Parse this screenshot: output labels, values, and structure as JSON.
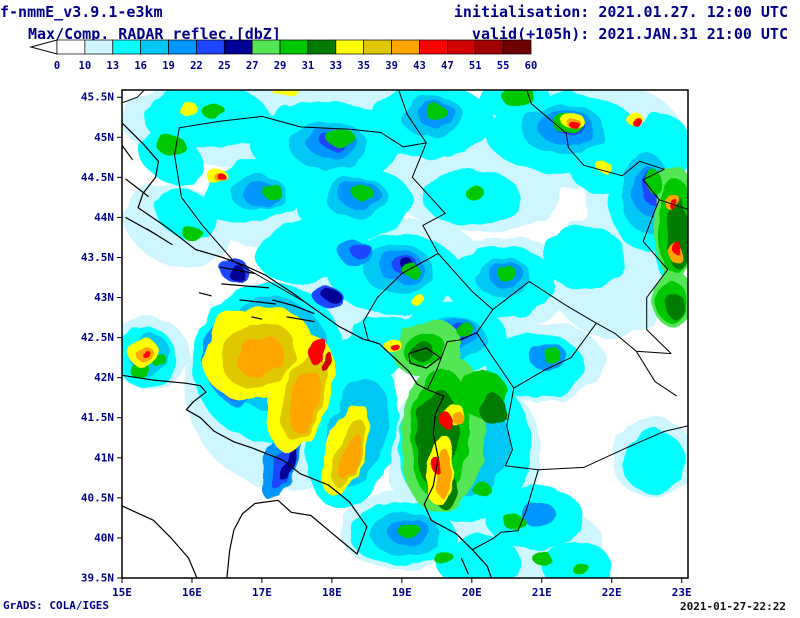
{
  "header": {
    "model": "f-nmmE_v3.9.1-e3km",
    "product": "Max/Comp. RADAR reflec.[dbZ]",
    "init": "initialisation: 2021.01.27. 12:00 UTC",
    "valid": "valid(+105h): 2021.JAN.31 21:00 UTC"
  },
  "colorbar": {
    "unit": "dbZ",
    "levels": [
      "0",
      "10",
      "13",
      "16",
      "19",
      "22",
      "25",
      "27",
      "29",
      "31",
      "33",
      "35",
      "39",
      "43",
      "47",
      "51",
      "55",
      "60"
    ],
    "colors": [
      "#ffffff",
      "#cdf6ff",
      "#00ffff",
      "#00c8f5",
      "#0096ff",
      "#1e46ff",
      "#000096",
      "#55e655",
      "#00c800",
      "#007d00",
      "#ffff00",
      "#e0c800",
      "#ffa500",
      "#ff0000",
      "#d20000",
      "#a00000",
      "#6e0000"
    ]
  },
  "axes": {
    "x_labels": [
      "15E",
      "16E",
      "17E",
      "18E",
      "19E",
      "20E",
      "21E",
      "22E",
      "23E"
    ],
    "y_labels": [
      "45.5N",
      "45N",
      "44.5N",
      "44N",
      "43.5N",
      "43N",
      "42.5N",
      "42N",
      "41.5N",
      "41N",
      "40.5N",
      "40N",
      "39.5N"
    ],
    "lon_min": 15,
    "lon_max": 23.09,
    "lat_min": 39.5,
    "lat_max": 45.59
  },
  "footer": {
    "left": "GrADS: COLA/IGES",
    "right": "2021-01-27-22:22"
  },
  "chart_data": {
    "type": "map-filled-contour",
    "quantity": "Max/Comp. RADAR reflectivity",
    "unit": "dbZ",
    "levels": [
      0,
      10,
      13,
      16,
      19,
      22,
      25,
      27,
      29,
      31,
      33,
      35,
      39,
      43,
      47,
      51,
      55,
      60
    ],
    "region": {
      "lon": [
        15,
        23.09
      ],
      "lat": [
        39.5,
        45.59
      ]
    },
    "cells": [
      [
        16.5,
        45.2,
        1.5,
        0.55,
        0,
        1
      ],
      [
        18.7,
        45.0,
        1.7,
        0.75,
        0,
        1
      ],
      [
        21.5,
        45.05,
        1.5,
        0.7,
        0,
        1
      ],
      [
        17.4,
        44.25,
        1.3,
        0.6,
        -10,
        1
      ],
      [
        20.1,
        44.35,
        1.2,
        0.55,
        0,
        1
      ],
      [
        22.4,
        44.3,
        0.8,
        0.9,
        0,
        1
      ],
      [
        15.8,
        43.9,
        0.8,
        0.5,
        20,
        1
      ],
      [
        18.9,
        43.35,
        1.3,
        0.6,
        -5,
        1
      ],
      [
        20.5,
        43.2,
        1.0,
        0.55,
        0,
        1
      ],
      [
        22.0,
        43.3,
        0.9,
        0.8,
        0,
        1
      ],
      [
        19.8,
        42.5,
        1.1,
        0.6,
        0,
        1
      ],
      [
        21.0,
        42.2,
        0.9,
        0.5,
        0,
        1
      ],
      [
        17.4,
        41.9,
        1.5,
        1.3,
        0,
        1
      ],
      [
        19.9,
        41.0,
        1.1,
        1.1,
        0,
        1
      ],
      [
        19.0,
        40.1,
        0.9,
        0.5,
        0,
        1
      ],
      [
        20.9,
        39.9,
        1.0,
        0.5,
        0,
        1
      ],
      [
        15.4,
        42.3,
        0.55,
        0.45,
        0,
        1
      ],
      [
        22.6,
        41.0,
        0.6,
        0.5,
        0,
        1
      ],
      [
        16.2,
        45.25,
        0.9,
        0.4,
        0,
        2
      ],
      [
        17.9,
        44.95,
        1.1,
        0.5,
        0,
        2
      ],
      [
        19.4,
        45.2,
        0.9,
        0.45,
        0,
        2
      ],
      [
        21.3,
        45.05,
        1.1,
        0.5,
        0,
        2
      ],
      [
        22.7,
        44.85,
        0.45,
        0.45,
        0,
        2
      ],
      [
        16.9,
        44.35,
        0.75,
        0.4,
        -15,
        2
      ],
      [
        18.3,
        44.2,
        0.85,
        0.45,
        0,
        2
      ],
      [
        20.0,
        44.25,
        0.7,
        0.35,
        0,
        2
      ],
      [
        22.45,
        44.25,
        0.5,
        0.65,
        0,
        2
      ],
      [
        15.7,
        44.75,
        0.5,
        0.3,
        30,
        2
      ],
      [
        15.9,
        44.05,
        0.45,
        0.3,
        30,
        2
      ],
      [
        17.7,
        43.6,
        0.8,
        0.4,
        -10,
        2
      ],
      [
        18.9,
        43.3,
        0.95,
        0.5,
        0,
        2
      ],
      [
        20.4,
        43.2,
        0.8,
        0.45,
        0,
        2
      ],
      [
        21.6,
        43.5,
        0.6,
        0.4,
        0,
        2
      ],
      [
        22.85,
        43.9,
        0.3,
        0.7,
        0,
        2
      ],
      [
        19.7,
        42.5,
        0.8,
        0.45,
        0,
        2
      ],
      [
        20.9,
        42.15,
        0.7,
        0.4,
        0,
        2
      ],
      [
        18.7,
        42.4,
        0.6,
        0.35,
        -20,
        2
      ],
      [
        17.1,
        42.2,
        1.1,
        1.0,
        0,
        2
      ],
      [
        18.3,
        41.3,
        0.6,
        0.95,
        15,
        2
      ],
      [
        19.9,
        41.15,
        0.95,
        0.95,
        0,
        2
      ],
      [
        19.0,
        40.05,
        0.75,
        0.4,
        0,
        2
      ],
      [
        20.1,
        39.7,
        0.6,
        0.35,
        0,
        2
      ],
      [
        20.9,
        40.25,
        0.7,
        0.4,
        0,
        2
      ],
      [
        21.5,
        39.65,
        0.5,
        0.3,
        0,
        2
      ],
      [
        15.35,
        42.25,
        0.42,
        0.38,
        0,
        2
      ],
      [
        22.6,
        40.95,
        0.45,
        0.4,
        0,
        2
      ],
      [
        21.9,
        44.6,
        0.5,
        0.3,
        0,
        2
      ],
      [
        20.6,
        45.5,
        0.5,
        0.25,
        0,
        2
      ],
      [
        17.95,
        44.9,
        0.55,
        0.3,
        0,
        3
      ],
      [
        21.3,
        45.1,
        0.6,
        0.3,
        0,
        3
      ],
      [
        19.45,
        45.25,
        0.45,
        0.25,
        0,
        3
      ],
      [
        18.35,
        44.25,
        0.45,
        0.25,
        0,
        3
      ],
      [
        16.95,
        44.3,
        0.4,
        0.22,
        0,
        3
      ],
      [
        18.95,
        43.35,
        0.5,
        0.3,
        0,
        3
      ],
      [
        20.45,
        43.25,
        0.4,
        0.25,
        0,
        3
      ],
      [
        19.75,
        42.5,
        0.45,
        0.25,
        0,
        3
      ],
      [
        17.15,
        42.3,
        0.8,
        0.7,
        0,
        3
      ],
      [
        18.35,
        41.3,
        0.4,
        0.7,
        15,
        3
      ],
      [
        19.9,
        41.15,
        0.65,
        0.65,
        0,
        3
      ],
      [
        22.5,
        44.3,
        0.35,
        0.5,
        0,
        3
      ],
      [
        22.85,
        43.85,
        0.22,
        0.55,
        0,
        3
      ],
      [
        19.05,
        40.05,
        0.5,
        0.28,
        0,
        3
      ],
      [
        15.4,
        42.28,
        0.3,
        0.27,
        0,
        3
      ],
      [
        18.0,
        44.93,
        0.35,
        0.2,
        0,
        4
      ],
      [
        21.35,
        45.12,
        0.4,
        0.22,
        0,
        4
      ],
      [
        19.5,
        45.28,
        0.28,
        0.16,
        0,
        4
      ],
      [
        17.0,
        44.28,
        0.26,
        0.16,
        0,
        4
      ],
      [
        18.4,
        44.28,
        0.3,
        0.17,
        0,
        4
      ],
      [
        22.52,
        44.33,
        0.22,
        0.3,
        0,
        4
      ],
      [
        19.0,
        43.38,
        0.32,
        0.2,
        0,
        4
      ],
      [
        20.5,
        43.28,
        0.26,
        0.16,
        0,
        4
      ],
      [
        16.55,
        42.2,
        0.38,
        0.55,
        -15,
        4
      ],
      [
        17.3,
        41.0,
        0.25,
        0.55,
        20,
        4
      ],
      [
        18.35,
        43.55,
        0.25,
        0.16,
        0,
        4
      ],
      [
        19.8,
        42.55,
        0.3,
        0.18,
        0,
        4
      ],
      [
        22.88,
        43.8,
        0.15,
        0.4,
        0,
        4
      ],
      [
        19.1,
        40.08,
        0.3,
        0.18,
        0,
        4
      ],
      [
        20.95,
        40.3,
        0.25,
        0.15,
        0,
        4
      ],
      [
        21.1,
        42.25,
        0.28,
        0.16,
        0,
        4
      ],
      [
        18.05,
        44.95,
        0.2,
        0.12,
        0,
        5
      ],
      [
        21.4,
        45.15,
        0.22,
        0.13,
        0,
        5
      ],
      [
        22.55,
        44.38,
        0.13,
        0.2,
        0,
        5
      ],
      [
        16.5,
        42.15,
        0.24,
        0.42,
        -15,
        5
      ],
      [
        17.35,
        40.95,
        0.15,
        0.38,
        20,
        5
      ],
      [
        19.05,
        43.4,
        0.18,
        0.12,
        0,
        5
      ],
      [
        18.42,
        43.58,
        0.15,
        0.1,
        0,
        5
      ],
      [
        16.6,
        43.35,
        0.2,
        0.14,
        0,
        5
      ],
      [
        17.95,
        43.0,
        0.2,
        0.13,
        0,
        5
      ],
      [
        19.85,
        42.58,
        0.17,
        0.11,
        0,
        5
      ],
      [
        16.62,
        43.32,
        0.12,
        0.09,
        0,
        6
      ],
      [
        18.0,
        43.02,
        0.12,
        0.08,
        0,
        6
      ],
      [
        16.45,
        42.1,
        0.14,
        0.28,
        -15,
        6
      ],
      [
        18.08,
        44.97,
        0.1,
        0.07,
        0,
        6
      ],
      [
        21.42,
        45.17,
        0.12,
        0.07,
        0,
        6
      ],
      [
        17.4,
        40.9,
        0.08,
        0.22,
        20,
        6
      ],
      [
        19.07,
        43.42,
        0.09,
        0.07,
        0,
        6
      ],
      [
        19.6,
        41.3,
        0.6,
        1.0,
        5,
        7
      ],
      [
        22.9,
        43.95,
        0.33,
        0.7,
        0,
        7
      ],
      [
        22.88,
        42.98,
        0.3,
        0.35,
        0,
        7
      ],
      [
        19.35,
        42.38,
        0.5,
        0.33,
        -20,
        7
      ],
      [
        19.55,
        41.3,
        0.42,
        0.8,
        5,
        8
      ],
      [
        20.15,
        41.8,
        0.35,
        0.3,
        0,
        8
      ],
      [
        22.9,
        43.9,
        0.26,
        0.6,
        0,
        8
      ],
      [
        22.85,
        42.95,
        0.22,
        0.26,
        0,
        8
      ],
      [
        19.32,
        42.35,
        0.3,
        0.2,
        -20,
        8
      ],
      [
        15.7,
        44.9,
        0.2,
        0.13,
        0,
        8
      ],
      [
        16.3,
        45.33,
        0.16,
        0.1,
        0,
        8
      ],
      [
        18.12,
        45.0,
        0.2,
        0.12,
        0,
        8
      ],
      [
        19.5,
        45.3,
        0.15,
        0.1,
        0,
        8
      ],
      [
        21.38,
        45.17,
        0.22,
        0.13,
        0,
        8
      ],
      [
        22.6,
        44.45,
        0.12,
        0.14,
        0,
        8
      ],
      [
        20.65,
        45.52,
        0.25,
        0.12,
        0,
        8
      ],
      [
        17.15,
        44.32,
        0.14,
        0.1,
        0,
        8
      ],
      [
        18.45,
        44.3,
        0.15,
        0.1,
        0,
        8
      ],
      [
        20.05,
        44.3,
        0.14,
        0.09,
        0,
        8
      ],
      [
        19.12,
        43.35,
        0.12,
        0.08,
        0,
        8
      ],
      [
        20.5,
        43.3,
        0.14,
        0.1,
        0,
        8
      ],
      [
        19.9,
        42.6,
        0.13,
        0.09,
        0,
        8
      ],
      [
        21.15,
        42.28,
        0.14,
        0.09,
        0,
        8
      ],
      [
        19.1,
        40.1,
        0.16,
        0.1,
        0,
        8
      ],
      [
        19.6,
        39.75,
        0.14,
        0.09,
        0,
        8
      ],
      [
        20.6,
        40.2,
        0.15,
        0.1,
        0,
        8
      ],
      [
        21.0,
        39.75,
        0.13,
        0.09,
        0,
        8
      ],
      [
        21.55,
        39.62,
        0.12,
        0.08,
        0,
        8
      ],
      [
        20.15,
        40.6,
        0.13,
        0.09,
        0,
        8
      ],
      [
        15.25,
        42.1,
        0.15,
        0.1,
        0,
        8
      ],
      [
        15.55,
        42.2,
        0.12,
        0.08,
        0,
        8
      ],
      [
        16.0,
        43.8,
        0.14,
        0.09,
        0,
        8
      ],
      [
        19.5,
        41.25,
        0.3,
        0.6,
        5,
        9
      ],
      [
        20.3,
        41.6,
        0.2,
        0.18,
        0,
        9
      ],
      [
        22.95,
        43.8,
        0.16,
        0.45,
        0,
        9
      ],
      [
        22.9,
        42.9,
        0.13,
        0.16,
        0,
        9
      ],
      [
        19.3,
        42.32,
        0.16,
        0.12,
        -20,
        9
      ],
      [
        19.62,
        40.6,
        0.15,
        0.25,
        0,
        9
      ],
      [
        16.95,
        42.3,
        0.8,
        0.55,
        -25,
        10
      ],
      [
        17.55,
        41.8,
        0.45,
        0.75,
        15,
        10
      ],
      [
        18.2,
        41.1,
        0.3,
        0.6,
        18,
        10
      ],
      [
        16.6,
        42.55,
        0.35,
        0.3,
        -25,
        10
      ],
      [
        19.55,
        40.85,
        0.18,
        0.45,
        5,
        10
      ],
      [
        19.75,
        41.55,
        0.15,
        0.12,
        0,
        10
      ],
      [
        15.95,
        45.35,
        0.13,
        0.09,
        0,
        10
      ],
      [
        21.45,
        45.2,
        0.16,
        0.1,
        0,
        10
      ],
      [
        17.35,
        45.57,
        0.18,
        0.08,
        0,
        10
      ],
      [
        22.3,
        45.25,
        0.12,
        0.08,
        0,
        10
      ],
      [
        16.35,
        44.52,
        0.14,
        0.1,
        0,
        10
      ],
      [
        15.3,
        42.32,
        0.22,
        0.18,
        0,
        10
      ],
      [
        18.85,
        42.42,
        0.12,
        0.09,
        0,
        10
      ],
      [
        19.25,
        42.95,
        0.1,
        0.08,
        0,
        10
      ],
      [
        21.9,
        44.62,
        0.1,
        0.07,
        0,
        10
      ],
      [
        16.95,
        42.28,
        0.55,
        0.38,
        -25,
        11
      ],
      [
        17.6,
        41.75,
        0.3,
        0.55,
        15,
        11
      ],
      [
        18.25,
        41.05,
        0.2,
        0.45,
        18,
        11
      ],
      [
        16.98,
        42.26,
        0.35,
        0.24,
        -25,
        12
      ],
      [
        17.62,
        41.7,
        0.2,
        0.4,
        15,
        12
      ],
      [
        18.28,
        41.0,
        0.13,
        0.3,
        18,
        12
      ],
      [
        19.6,
        40.8,
        0.1,
        0.3,
        5,
        12
      ],
      [
        19.8,
        41.5,
        0.09,
        0.07,
        0,
        12
      ],
      [
        16.4,
        44.5,
        0.08,
        0.06,
        0,
        12
      ],
      [
        15.32,
        42.3,
        0.13,
        0.1,
        0,
        12
      ],
      [
        22.88,
        44.18,
        0.12,
        0.1,
        0,
        12
      ],
      [
        22.92,
        43.55,
        0.1,
        0.12,
        0,
        12
      ],
      [
        21.46,
        45.17,
        0.09,
        0.07,
        0,
        12
      ],
      [
        17.78,
        42.35,
        0.09,
        0.17,
        25,
        13
      ],
      [
        19.62,
        41.48,
        0.08,
        0.1,
        0,
        13
      ],
      [
        19.5,
        40.9,
        0.06,
        0.1,
        0,
        13
      ],
      [
        21.47,
        45.15,
        0.07,
        0.05,
        0,
        13
      ],
      [
        22.33,
        45.22,
        0.07,
        0.06,
        0,
        13
      ],
      [
        22.9,
        44.15,
        0.06,
        0.07,
        0,
        13
      ],
      [
        22.95,
        43.6,
        0.06,
        0.08,
        0,
        13
      ],
      [
        15.33,
        42.31,
        0.06,
        0.05,
        0,
        13
      ],
      [
        18.88,
        42.4,
        0.06,
        0.05,
        0,
        13
      ],
      [
        16.42,
        44.51,
        0.05,
        0.05,
        0,
        13
      ],
      [
        17.9,
        42.22,
        0.06,
        0.12,
        25,
        14
      ]
    ]
  }
}
